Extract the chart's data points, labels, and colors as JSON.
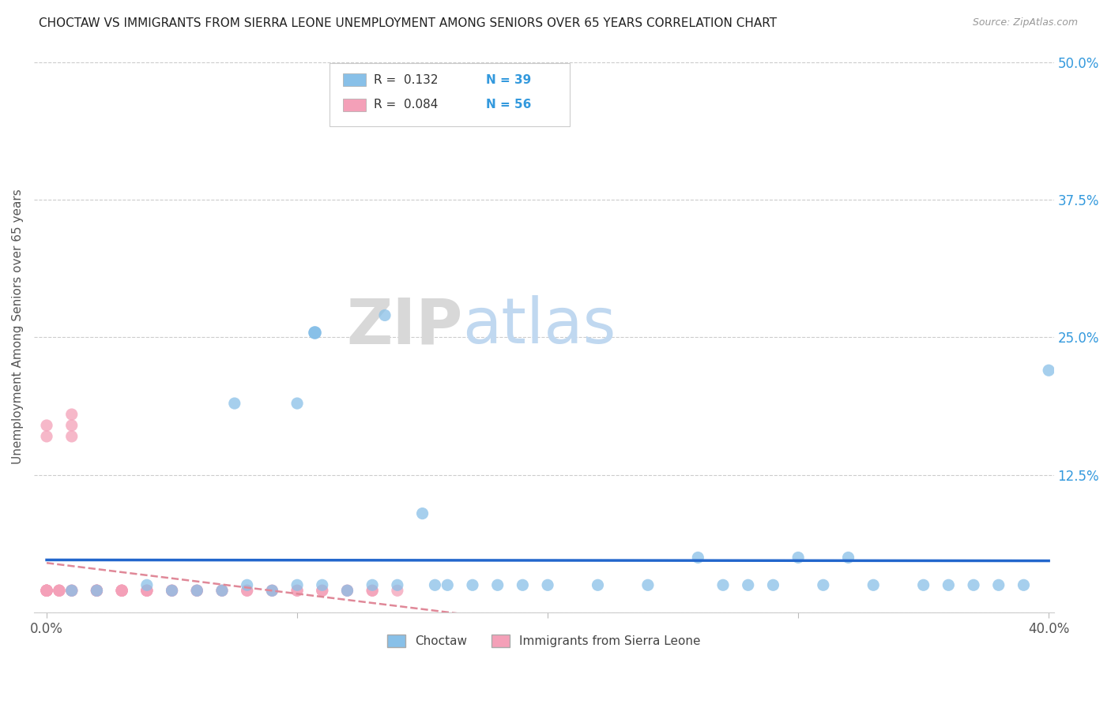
{
  "title": "CHOCTAW VS IMMIGRANTS FROM SIERRA LEONE UNEMPLOYMENT AMONG SENIORS OVER 65 YEARS CORRELATION CHART",
  "source": "Source: ZipAtlas.com",
  "ylabel": "Unemployment Among Seniors over 65 years",
  "xlim": [
    0.0,
    0.4
  ],
  "ylim": [
    0.0,
    0.5
  ],
  "xticks": [
    0.0,
    0.1,
    0.2,
    0.3,
    0.4
  ],
  "xtick_labels": [
    "0.0%",
    "",
    "",
    "",
    "40.0%"
  ],
  "yticks": [
    0.0,
    0.125,
    0.25,
    0.375,
    0.5
  ],
  "ytick_labels": [
    "",
    "12.5%",
    "25.0%",
    "37.5%",
    "50.0%"
  ],
  "choctaw_color": "#88c0e8",
  "sierra_leone_color": "#f4a0b8",
  "choctaw_line_color": "#2266cc",
  "sierra_leone_line_color": "#e08898",
  "choctaw_R": 0.132,
  "choctaw_N": 39,
  "sierra_leone_R": 0.084,
  "sierra_leone_N": 56,
  "watermark_zip": "ZIP",
  "watermark_atlas": "atlas",
  "legend_label_1": "Choctaw",
  "legend_label_2": "Immigrants from Sierra Leone",
  "choctaw_x": [
    0.01,
    0.02,
    0.04,
    0.05,
    0.06,
    0.07,
    0.075,
    0.08,
    0.09,
    0.1,
    0.1,
    0.11,
    0.12,
    0.13,
    0.135,
    0.14,
    0.15,
    0.155,
    0.16,
    0.17,
    0.18,
    0.19,
    0.2,
    0.22,
    0.24,
    0.26,
    0.27,
    0.28,
    0.29,
    0.3,
    0.31,
    0.32,
    0.33,
    0.35,
    0.36,
    0.37,
    0.38,
    0.39,
    0.4
  ],
  "choctaw_y": [
    0.02,
    0.02,
    0.025,
    0.02,
    0.02,
    0.02,
    0.19,
    0.025,
    0.02,
    0.025,
    0.19,
    0.025,
    0.02,
    0.025,
    0.27,
    0.025,
    0.09,
    0.025,
    0.025,
    0.025,
    0.025,
    0.025,
    0.025,
    0.025,
    0.025,
    0.05,
    0.025,
    0.025,
    0.025,
    0.05,
    0.025,
    0.05,
    0.025,
    0.025,
    0.025,
    0.025,
    0.025,
    0.025,
    0.22
  ],
  "sierra_leone_x": [
    0.0,
    0.0,
    0.0,
    0.0,
    0.0,
    0.0,
    0.0,
    0.0,
    0.0,
    0.0,
    0.005,
    0.005,
    0.005,
    0.005,
    0.01,
    0.01,
    0.01,
    0.01,
    0.01,
    0.01,
    0.02,
    0.02,
    0.02,
    0.02,
    0.02,
    0.02,
    0.03,
    0.03,
    0.03,
    0.03,
    0.03,
    0.04,
    0.04,
    0.04,
    0.04,
    0.05,
    0.05,
    0.05,
    0.06,
    0.06,
    0.06,
    0.07,
    0.07,
    0.08,
    0.08,
    0.09,
    0.09,
    0.1,
    0.1,
    0.11,
    0.11,
    0.12,
    0.12,
    0.13,
    0.13,
    0.14
  ],
  "sierra_leone_y": [
    0.02,
    0.02,
    0.02,
    0.02,
    0.02,
    0.02,
    0.02,
    0.02,
    0.16,
    0.17,
    0.02,
    0.02,
    0.02,
    0.02,
    0.02,
    0.02,
    0.02,
    0.16,
    0.17,
    0.18,
    0.02,
    0.02,
    0.02,
    0.02,
    0.02,
    0.02,
    0.02,
    0.02,
    0.02,
    0.02,
    0.02,
    0.02,
    0.02,
    0.02,
    0.02,
    0.02,
    0.02,
    0.02,
    0.02,
    0.02,
    0.02,
    0.02,
    0.02,
    0.02,
    0.02,
    0.02,
    0.02,
    0.02,
    0.02,
    0.02,
    0.02,
    0.02,
    0.02,
    0.02,
    0.02,
    0.02
  ]
}
